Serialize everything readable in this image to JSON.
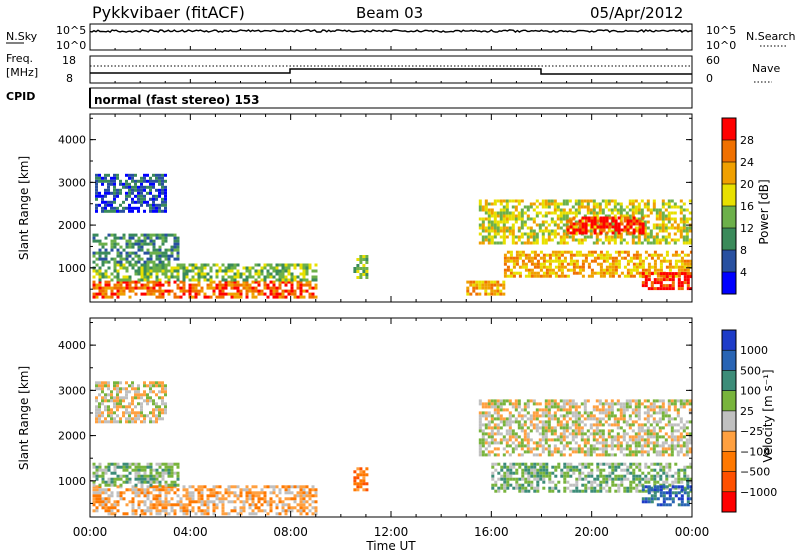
{
  "header": {
    "station": "Pykkvibaer (fitACF)",
    "beam": "Beam 03",
    "date": "05/Apr/2012"
  },
  "top_panels": {
    "nsky_label": "N.Sky",
    "nsky_ticks": [
      "10^5",
      "10^0"
    ],
    "nsearch_label": "N.Search",
    "nsearch_ticks": [
      "10^5",
      "10^0"
    ],
    "freq_label": "Freq.",
    "freq_unit": "[MHz]",
    "freq_ticks": [
      "18",
      "8"
    ],
    "nave_label": "Nave",
    "nave_ticks": [
      "60",
      "0"
    ],
    "cpid_label": "CPID",
    "cpid_text": "normal (fast stereo) 153"
  },
  "colors": {
    "power": [
      "#0000ff",
      "#2850a0",
      "#3a8a5a",
      "#6cb04a",
      "#e8e000",
      "#f0a000",
      "#f07000",
      "#ff0000"
    ],
    "velocity": [
      "#1e3cc8",
      "#2864b4",
      "#3c8c78",
      "#78b43c",
      "#c0c0c0",
      "#ffa040",
      "#ff7800",
      "#ff5000",
      "#ff0000"
    ]
  },
  "chart_data": [
    {
      "type": "heatmap",
      "name_panel": "power",
      "ylabel": "Slant Range [km]",
      "yticks": [
        "1000",
        "2000",
        "3000",
        "4000"
      ],
      "xticks": [
        "00:00",
        "04:00",
        "08:00",
        "12:00",
        "16:00",
        "20:00",
        "00:00"
      ],
      "ylim": [
        200,
        4600
      ],
      "xlim": [
        0,
        24
      ],
      "colorbar_label": "Power [dB]",
      "colorbar_ticks": [
        "4",
        "8",
        "12",
        "16",
        "20",
        "24",
        "28"
      ],
      "regions": [
        {
          "t": [
            0.1,
            9.0
          ],
          "r": [
            300,
            700
          ],
          "level": 6
        },
        {
          "t": [
            0.1,
            9.0
          ],
          "r": [
            700,
            1100
          ],
          "level": 3
        },
        {
          "t": [
            0.1,
            3.5
          ],
          "r": [
            1100,
            1800
          ],
          "level": 2
        },
        {
          "t": [
            0.2,
            3.0
          ],
          "r": [
            2300,
            3200
          ],
          "level": 1
        },
        {
          "t": [
            10.5,
            11.0
          ],
          "r": [
            800,
            1300
          ],
          "level": 3
        },
        {
          "t": [
            15.0,
            16.5
          ],
          "r": [
            400,
            700
          ],
          "level": 5
        },
        {
          "t": [
            15.5,
            24.0
          ],
          "r": [
            1600,
            2600
          ],
          "level": 4
        },
        {
          "t": [
            19.0,
            22.0
          ],
          "r": [
            1800,
            2200
          ],
          "level": 7
        },
        {
          "t": [
            16.5,
            24.0
          ],
          "r": [
            800,
            1400
          ],
          "level": 5
        },
        {
          "t": [
            22.0,
            24.0
          ],
          "r": [
            500,
            900
          ],
          "level": 7
        }
      ]
    },
    {
      "type": "heatmap",
      "name_panel": "velocity",
      "ylabel": "Slant Range [km]",
      "yticks": [
        "1000",
        "2000",
        "3000",
        "4000"
      ],
      "xticks": [
        "00:00",
        "04:00",
        "08:00",
        "12:00",
        "16:00",
        "20:00",
        "00:00"
      ],
      "ylim": [
        200,
        4600
      ],
      "xlim": [
        0,
        24
      ],
      "xlabel": "Time UT",
      "colorbar_label": "Velocity [m s⁻¹]",
      "colorbar_ticks": [
        "1000",
        "500",
        "100",
        "25",
        "−25",
        "−100",
        "−500",
        "−1000"
      ],
      "regions": [
        {
          "t": [
            0.1,
            9.0
          ],
          "r": [
            300,
            900
          ],
          "level": 5
        },
        {
          "t": [
            0.1,
            3.5
          ],
          "r": [
            900,
            1400
          ],
          "level": 3
        },
        {
          "t": [
            0.2,
            3.0
          ],
          "r": [
            2300,
            3200
          ],
          "level": 4
        },
        {
          "t": [
            10.5,
            11.0
          ],
          "r": [
            800,
            1300
          ],
          "level": 6
        },
        {
          "t": [
            15.5,
            24.0
          ],
          "r": [
            1600,
            2800
          ],
          "level": 4
        },
        {
          "t": [
            16.0,
            24.0
          ],
          "r": [
            800,
            1400
          ],
          "level": 3
        },
        {
          "t": [
            22.0,
            24.0
          ],
          "r": [
            500,
            900
          ],
          "level": 1
        }
      ]
    }
  ]
}
